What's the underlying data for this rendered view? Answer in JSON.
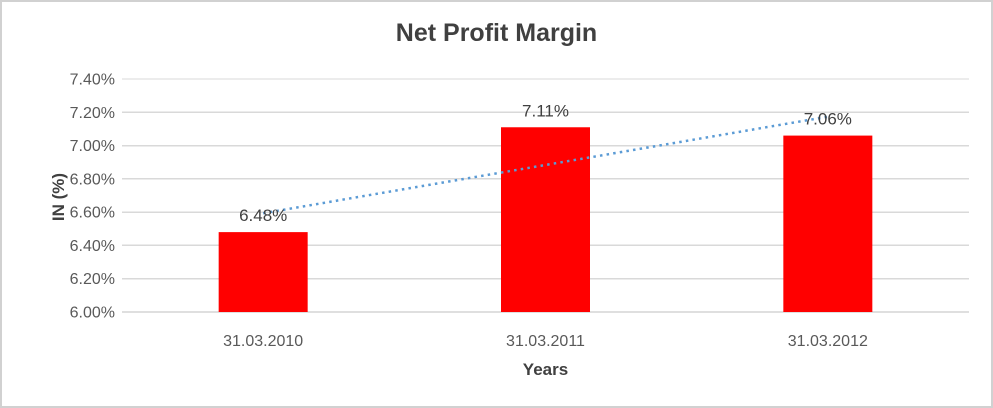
{
  "chart_data": {
    "type": "bar",
    "title": "Net Profit Margin",
    "xlabel": "Years",
    "ylabel": "IN (%)",
    "categories": [
      "31.03.2010",
      "31.03.2011",
      "31.03.2012"
    ],
    "series": [
      {
        "name": "Net Profit Margin",
        "values": [
          6.48,
          7.11,
          7.06
        ]
      }
    ],
    "data_labels": [
      "6.48%",
      "7.11%",
      "7.06%"
    ],
    "ylim": [
      6.0,
      7.4
    ],
    "ytick_step": 0.2,
    "ytick_labels": [
      "6.00%",
      "6.20%",
      "6.40%",
      "6.60%",
      "6.80%",
      "7.00%",
      "7.20%",
      "7.40%"
    ],
    "grid": true,
    "legend": false,
    "bar_color": "#ff0000",
    "trendline": {
      "type": "linear",
      "style": "dotted",
      "color": "#5b9bd5"
    },
    "colors": {
      "title_text": "#404040",
      "axis_title_text": "#404040",
      "tick_text": "#595959",
      "data_label_text": "#404040",
      "gridline": "#d9d9d9",
      "axis_line": "#bfbfbf",
      "background": "#ffffff",
      "frame_border": "#d1d1d1"
    }
  }
}
